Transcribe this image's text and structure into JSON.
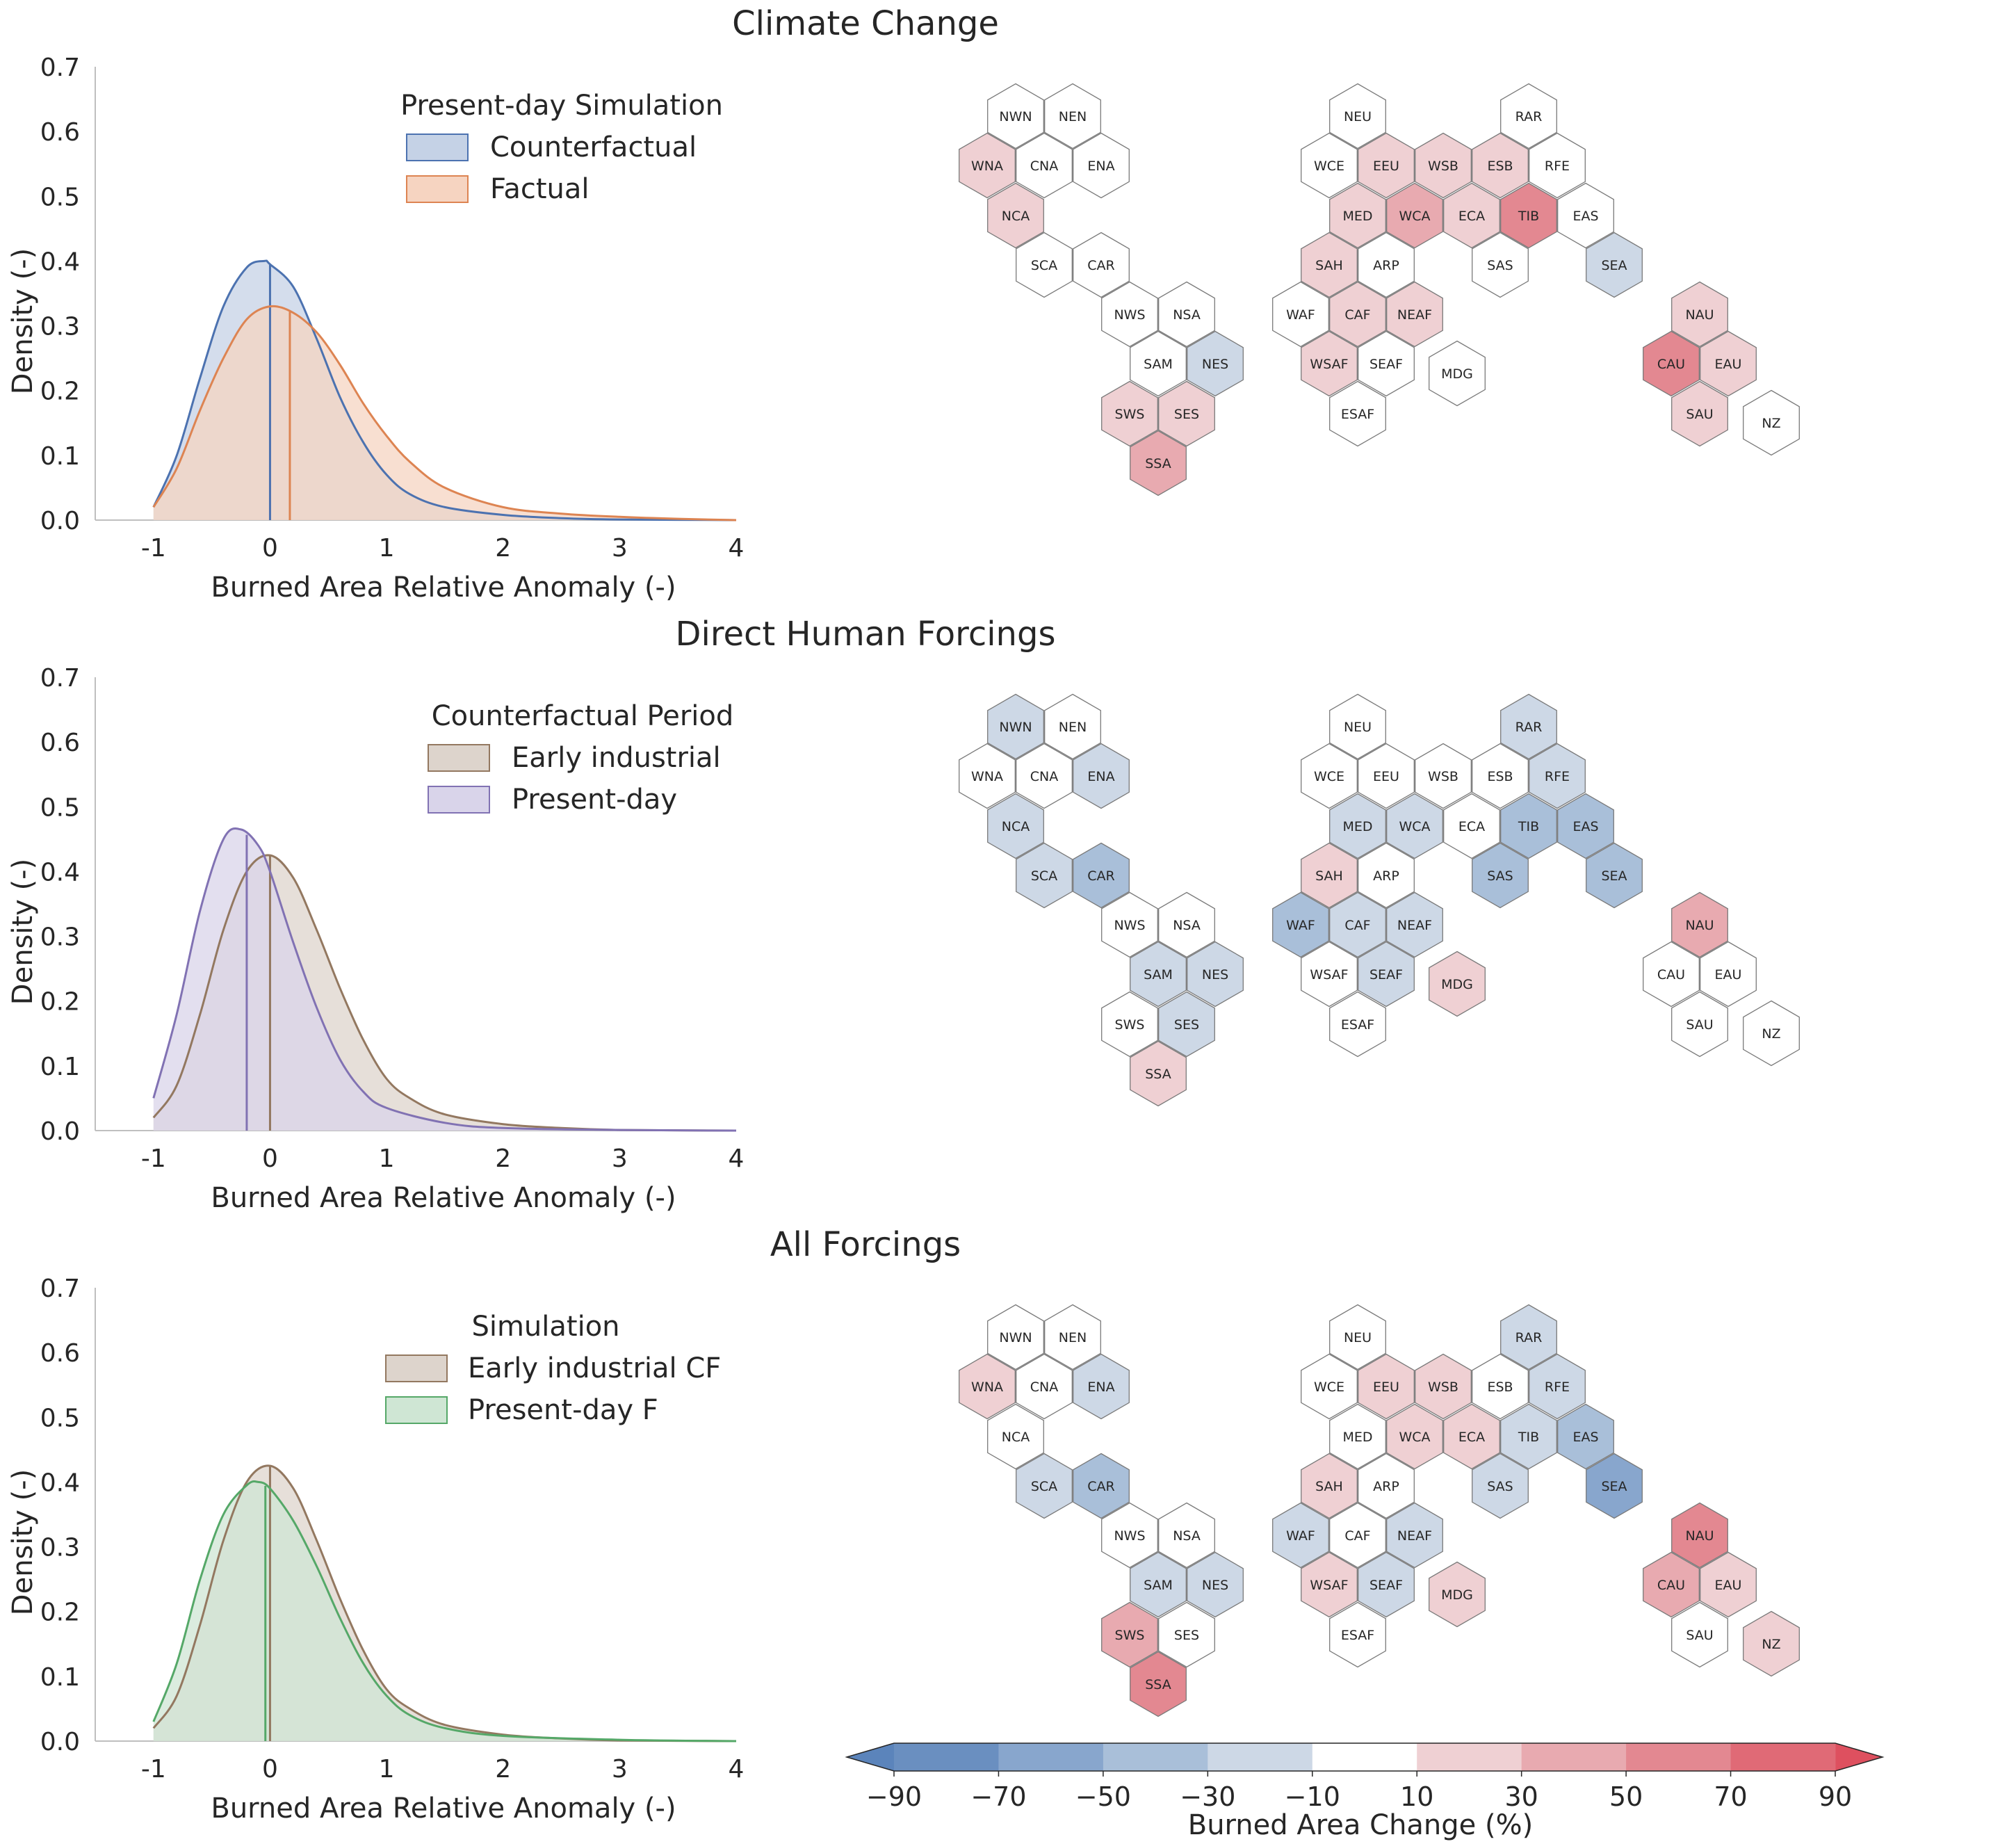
{
  "chart_data": [
    {
      "type": "area",
      "title": "Climate Change",
      "xlabel": "Burned Area Relative Anomaly (-)",
      "ylabel": "Density (-)",
      "xlim": [
        -1.5,
        4
      ],
      "ylim": [
        0,
        0.7
      ],
      "xticks": [
        -1,
        0,
        1,
        2,
        3,
        4
      ],
      "xtick_labels": [
        "-1",
        "0",
        "1",
        "2",
        "3",
        "4"
      ],
      "yticks": [
        0.0,
        0.1,
        0.2,
        0.3,
        0.4,
        0.5,
        0.6,
        0.7
      ],
      "ytick_labels": [
        "0.0",
        "0.1",
        "0.2",
        "0.3",
        "0.4",
        "0.5",
        "0.6",
        "0.7"
      ],
      "legend_title": "Present-day Simulation",
      "legend_placement": "top-right",
      "series": [
        {
          "name": "Counterfactual",
          "color": "#4c72b0",
          "fill": "#c5d2e6",
          "x": [
            -1.0,
            -0.8,
            -0.6,
            -0.4,
            -0.2,
            -0.05,
            0.0,
            0.2,
            0.4,
            0.6,
            0.8,
            1.0,
            1.2,
            1.5,
            2.0,
            2.5,
            3.0,
            4.0
          ],
          "y": [
            0.02,
            0.1,
            0.22,
            0.33,
            0.39,
            0.4,
            0.395,
            0.36,
            0.28,
            0.19,
            0.12,
            0.07,
            0.04,
            0.02,
            0.008,
            0.003,
            0.001,
            0.0
          ],
          "mean": 0.0
        },
        {
          "name": "Factual",
          "color": "#dd8452",
          "fill": "#f6d4c1",
          "x": [
            -1.0,
            -0.8,
            -0.6,
            -0.4,
            -0.2,
            0.0,
            0.2,
            0.4,
            0.6,
            0.8,
            1.0,
            1.2,
            1.5,
            2.0,
            2.5,
            3.0,
            3.5,
            4.0
          ],
          "y": [
            0.02,
            0.08,
            0.17,
            0.25,
            0.31,
            0.33,
            0.32,
            0.29,
            0.24,
            0.18,
            0.13,
            0.09,
            0.05,
            0.02,
            0.01,
            0.005,
            0.002,
            0.0
          ],
          "mean": 0.17
        }
      ],
      "hex_values": {
        "NWN": 0,
        "NEN": 0,
        "WNA": 25,
        "CNA": 0,
        "ENA": 0,
        "NCA": 25,
        "SCA": 0,
        "CAR": 0,
        "NWS": 0,
        "NSA": 0,
        "SAM": 0,
        "NES": -25,
        "SWS": 25,
        "SES": 25,
        "SSA": 45,
        "NEU": 0,
        "RAR": 0,
        "WCE": 0,
        "EEU": 25,
        "WSB": 25,
        "ESB": 25,
        "RFE": 0,
        "MED": 25,
        "WCA": 45,
        "ECA": 25,
        "TIB": 60,
        "EAS": 0,
        "SAH": 25,
        "ARP": 0,
        "SAS": 0,
        "SEA": -25,
        "WAF": 0,
        "CAF": 25,
        "NEAF": 25,
        "WSAF": 25,
        "SEAF": 0,
        "ESAF": 0,
        "MDG": 0,
        "NAU": 25,
        "CAU": 60,
        "EAU": 25,
        "SAU": 25,
        "NZ": 0
      }
    },
    {
      "type": "area",
      "title": "Direct Human Forcings",
      "xlabel": "Burned Area Relative Anomaly (-)",
      "ylabel": "Density (-)",
      "xlim": [
        -1.5,
        4
      ],
      "ylim": [
        0,
        0.7
      ],
      "xticks": [
        -1,
        0,
        1,
        2,
        3,
        4
      ],
      "xtick_labels": [
        "-1",
        "0",
        "1",
        "2",
        "3",
        "4"
      ],
      "yticks": [
        0.0,
        0.1,
        0.2,
        0.3,
        0.4,
        0.5,
        0.6,
        0.7
      ],
      "ytick_labels": [
        "0.0",
        "0.1",
        "0.2",
        "0.3",
        "0.4",
        "0.5",
        "0.6",
        "0.7"
      ],
      "legend_title": "Counterfactual Period",
      "legend_placement": "top-right",
      "series": [
        {
          "name": "Early industrial",
          "color": "#937860",
          "fill": "#ddd4cc",
          "x": [
            -1.0,
            -0.8,
            -0.6,
            -0.4,
            -0.2,
            0.0,
            0.2,
            0.4,
            0.6,
            0.8,
            1.0,
            1.2,
            1.5,
            2.0,
            2.5,
            3.0,
            4.0
          ],
          "y": [
            0.02,
            0.07,
            0.18,
            0.31,
            0.4,
            0.425,
            0.39,
            0.31,
            0.22,
            0.14,
            0.08,
            0.05,
            0.025,
            0.01,
            0.004,
            0.001,
            0.0
          ],
          "mean": 0.0
        },
        {
          "name": "Present-day",
          "color": "#8172b3",
          "fill": "#d9d4ea",
          "x": [
            -1.0,
            -0.8,
            -0.6,
            -0.4,
            -0.25,
            -0.1,
            0.0,
            0.2,
            0.4,
            0.6,
            0.8,
            1.0,
            1.5,
            2.0,
            3.0,
            4.0
          ],
          "y": [
            0.05,
            0.18,
            0.34,
            0.45,
            0.465,
            0.44,
            0.4,
            0.29,
            0.19,
            0.11,
            0.06,
            0.035,
            0.012,
            0.004,
            0.001,
            0.0
          ],
          "mean": -0.2
        }
      ],
      "hex_values": {
        "NWN": -25,
        "NEN": 0,
        "WNA": 0,
        "CNA": 0,
        "ENA": -25,
        "NCA": -25,
        "SCA": -25,
        "CAR": -45,
        "NWS": 0,
        "NSA": 0,
        "SAM": -25,
        "NES": -25,
        "SWS": 0,
        "SES": -25,
        "SSA": 20,
        "NEU": 0,
        "RAR": -25,
        "WCE": 0,
        "EEU": 0,
        "WSB": 0,
        "ESB": 0,
        "RFE": -25,
        "MED": -25,
        "WCA": -25,
        "ECA": 0,
        "TIB": -45,
        "EAS": -45,
        "SAH": 25,
        "ARP": 0,
        "SAS": -45,
        "SEA": -45,
        "WAF": -45,
        "CAF": -25,
        "NEAF": -25,
        "WSAF": 0,
        "SEAF": -25,
        "ESAF": 0,
        "MDG": 25,
        "NAU": 45,
        "CAU": 0,
        "EAU": 0,
        "SAU": 0,
        "NZ": 0
      }
    },
    {
      "type": "area",
      "title": "All Forcings",
      "xlabel": "Burned Area Relative Anomaly (-)",
      "ylabel": "Density (-)",
      "xlim": [
        -1.5,
        4
      ],
      "ylim": [
        0,
        0.7
      ],
      "xticks": [
        -1,
        0,
        1,
        2,
        3,
        4
      ],
      "xtick_labels": [
        "-1",
        "0",
        "1",
        "2",
        "3",
        "4"
      ],
      "yticks": [
        0.0,
        0.1,
        0.2,
        0.3,
        0.4,
        0.5,
        0.6,
        0.7
      ],
      "ytick_labels": [
        "0.0",
        "0.1",
        "0.2",
        "0.3",
        "0.4",
        "0.5",
        "0.6",
        "0.7"
      ],
      "legend_title": "Simulation",
      "legend_placement": "top-right",
      "series": [
        {
          "name": "Early industrial CF",
          "color": "#937860",
          "fill": "#ddd4cc",
          "x": [
            -1.0,
            -0.8,
            -0.6,
            -0.4,
            -0.2,
            0.0,
            0.2,
            0.4,
            0.6,
            0.8,
            1.0,
            1.2,
            1.5,
            2.0,
            2.5,
            3.0,
            4.0
          ],
          "y": [
            0.02,
            0.07,
            0.18,
            0.31,
            0.4,
            0.425,
            0.39,
            0.31,
            0.22,
            0.14,
            0.08,
            0.05,
            0.025,
            0.01,
            0.004,
            0.001,
            0.0
          ],
          "mean": 0.0
        },
        {
          "name": "Present-day F",
          "color": "#55a868",
          "fill": "#cfe6d4",
          "x": [
            -1.0,
            -0.8,
            -0.6,
            -0.4,
            -0.2,
            -0.1,
            0.0,
            0.2,
            0.4,
            0.6,
            0.8,
            1.0,
            1.2,
            1.5,
            2.0,
            3.0,
            4.0
          ],
          "y": [
            0.03,
            0.12,
            0.25,
            0.35,
            0.395,
            0.4,
            0.39,
            0.34,
            0.27,
            0.19,
            0.12,
            0.07,
            0.04,
            0.02,
            0.008,
            0.002,
            0.0
          ],
          "mean": -0.04
        }
      ],
      "hex_values": {
        "NWN": 0,
        "NEN": 0,
        "WNA": 25,
        "CNA": 0,
        "ENA": -25,
        "NCA": 0,
        "SCA": -25,
        "CAR": -45,
        "NWS": 0,
        "NSA": 0,
        "SAM": -25,
        "NES": -25,
        "SWS": 45,
        "SES": 0,
        "SSA": 60,
        "NEU": 0,
        "RAR": -25,
        "WCE": 0,
        "EEU": 25,
        "WSB": 25,
        "ESB": 0,
        "RFE": -25,
        "MED": 0,
        "WCA": 25,
        "ECA": 25,
        "TIB": -25,
        "EAS": -45,
        "SAH": 25,
        "ARP": 0,
        "SAS": -25,
        "SEA": -60,
        "WAF": -25,
        "CAF": 0,
        "NEAF": -25,
        "WSAF": 25,
        "SEAF": -25,
        "ESAF": 0,
        "MDG": 25,
        "NAU": 60,
        "CAU": 45,
        "EAU": 25,
        "SAU": 0,
        "NZ": 25
      }
    }
  ],
  "hex_regions": [
    "NWN",
    "NEN",
    "WNA",
    "CNA",
    "ENA",
    "NCA",
    "SCA",
    "CAR",
    "NWS",
    "NSA",
    "SAM",
    "NES",
    "SWS",
    "SES",
    "SSA",
    "NEU",
    "RAR",
    "WCE",
    "EEU",
    "WSB",
    "ESB",
    "RFE",
    "MED",
    "WCA",
    "ECA",
    "TIB",
    "EAS",
    "SAH",
    "ARP",
    "SAS",
    "SEA",
    "WAF",
    "CAF",
    "NEAF",
    "WSAF",
    "SEAF",
    "ESAF",
    "MDG",
    "NAU",
    "CAU",
    "EAU",
    "SAU",
    "NZ"
  ],
  "colorbar": {
    "label": "Burned Area Change (%)",
    "boundaries": [
      -90,
      -70,
      -50,
      -30,
      -10,
      10,
      30,
      50,
      70,
      90
    ],
    "tick_labels": [
      "−90",
      "−70",
      "−50",
      "−30",
      "−10",
      "10",
      "30",
      "50",
      "70",
      "90"
    ],
    "colors": [
      "#6a8fc0",
      "#88a6cd",
      "#a9bfd9",
      "#cdd8e6",
      "#ffffff",
      "#efd0d3",
      "#e8aab0",
      "#e38891",
      "#e06a76"
    ],
    "extend_low_color": "#5b84bb",
    "extend_high_color": "#de505f"
  }
}
